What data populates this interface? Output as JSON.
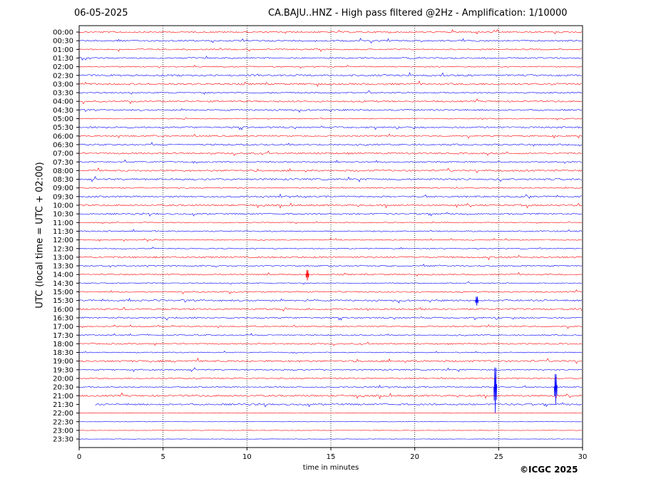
{
  "header": {
    "date": "06-05-2025",
    "title": "CA.BAJU..HNZ - High pass filtered @2Hz - Amplification: 1/10000"
  },
  "footer": {
    "copyright": "©ICGC 2025"
  },
  "colors": {
    "red": "#ff0000",
    "blue": "#0000ff",
    "grid": "#000000"
  },
  "chart_data": {
    "type": "line",
    "title": "CA.BAJU..HNZ - High pass filtered @2Hz - Amplification: 1/10000",
    "xlabel": "time in minutes",
    "ylabel": "UTC (local time = UTC + 02:00)",
    "xlim": [
      0,
      30
    ],
    "xticks": [
      0,
      5,
      10,
      15,
      20,
      25,
      30
    ],
    "vertical_gridlines": [
      5,
      10,
      15,
      20,
      25
    ],
    "row_labels": [
      "00:00",
      "00:30",
      "01:00",
      "01:30",
      "02:00",
      "02:30",
      "03:00",
      "03:30",
      "04:00",
      "04:30",
      "05:00",
      "05:30",
      "06:00",
      "06:30",
      "07:00",
      "07:30",
      "08:00",
      "08:30",
      "09:00",
      "09:30",
      "10:00",
      "10:30",
      "11:00",
      "11:30",
      "12:00",
      "12:30",
      "13:00",
      "13:30",
      "14:00",
      "14:30",
      "15:00",
      "15:30",
      "16:00",
      "16:30",
      "17:00",
      "17:30",
      "18:00",
      "18:30",
      "19:00",
      "19:30",
      "20:00",
      "20:30",
      "21:00",
      "21:30",
      "22:00",
      "22:30",
      "23:00",
      "23:30"
    ],
    "row_colors": [
      "red",
      "blue"
    ],
    "series_note": "helicorder traces alternate red and blue by row",
    "events": [
      {
        "row": "20:30",
        "x_minutes": 24.8,
        "amplitude": 3.0
      },
      {
        "row": "20:30",
        "x_minutes": 28.4,
        "amplitude": 2.0
      },
      {
        "row": "14:00",
        "x_minutes": 13.6,
        "amplitude": 0.7
      },
      {
        "row": "15:30",
        "x_minutes": 23.7,
        "amplitude": 0.6
      }
    ],
    "gap": {
      "row": "21:30",
      "from_minutes": 0,
      "to_minutes": 0.9
    }
  }
}
